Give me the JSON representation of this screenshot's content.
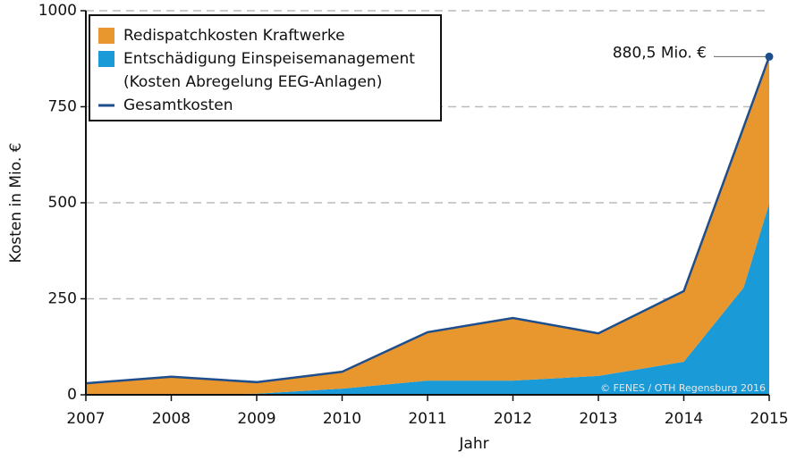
{
  "chart_data": {
    "type": "stacked-area",
    "y_label": "Kosten in Mio. €",
    "x_label": "Jahr",
    "x": [
      2007,
      2008,
      2009,
      2010,
      2011,
      2012,
      2013,
      2014,
      2014.7,
      2015
    ],
    "series": [
      {
        "name": "Redispatchkosten Kraftwerke",
        "color": "#e8962e",
        "kind": "area",
        "values": [
          30,
          47,
          30,
          44,
          126,
          163,
          111,
          184,
          418,
          382.5
        ]
      },
      {
        "name": "Entschädigung Einspeisemanagement",
        "name_detail": "(Kosten Abregelung EEG-Anlagen)",
        "color": "#1a9ad6",
        "kind": "area",
        "values": [
          0,
          0,
          3,
          16,
          37,
          37,
          49,
          86,
          279,
          498
        ]
      },
      {
        "name": "Gesamtkosten",
        "color": "#1f4e8c",
        "kind": "line",
        "values": [
          30,
          47,
          33,
          60,
          163,
          200,
          160,
          270,
          697,
          880.5
        ]
      }
    ],
    "xlim": [
      2007,
      2015
    ],
    "xticks": [
      2007,
      2008,
      2009,
      2010,
      2011,
      2012,
      2013,
      2014,
      2015
    ],
    "ylim": [
      0,
      1000
    ],
    "yticks": [
      0,
      250,
      500,
      750,
      1000
    ],
    "grid": true,
    "annotation": {
      "text": "880,5 Mio. €",
      "series": 2,
      "index": 9
    },
    "credit": "© FENES / OTH Regensburg 2016"
  }
}
